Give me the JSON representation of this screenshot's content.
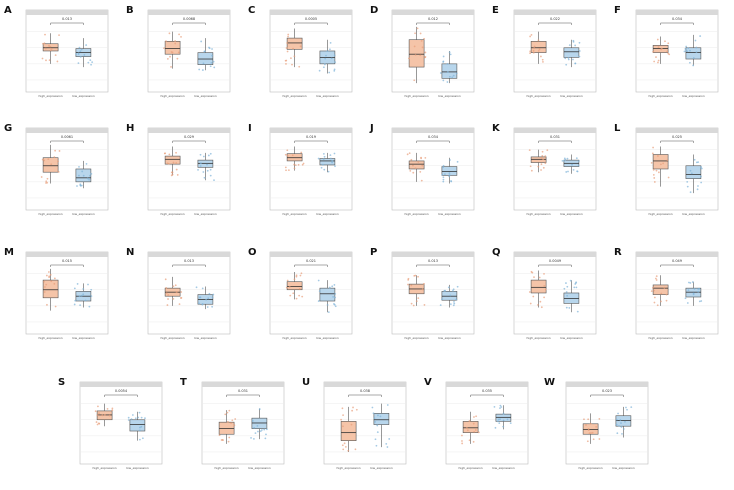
{
  "colors": {
    "high": "#f5c4a8",
    "low": "#b8d6ec",
    "strip": "#d9d9d9",
    "grid": "#ebebeb"
  },
  "chart_data": [
    {
      "type": "box",
      "panel": "A",
      "pvalue": "0.013",
      "series": [
        {
          "name": "high_expression",
          "q1": 2.8,
          "median": 3.0,
          "q3": 3.25,
          "lo": 2.0,
          "hi": 3.9
        },
        {
          "name": "low_expression",
          "q1": 2.45,
          "median": 2.7,
          "q3": 2.95,
          "lo": 1.8,
          "hi": 3.6
        }
      ]
    },
    {
      "type": "box",
      "panel": "B",
      "pvalue": "0.0068",
      "series": [
        {
          "name": "high_expression",
          "q1": 2.6,
          "median": 2.95,
          "q3": 3.4,
          "lo": 1.7,
          "hi": 4.0
        },
        {
          "name": "low_expression",
          "q1": 1.95,
          "median": 2.3,
          "q3": 2.7,
          "lo": 1.6,
          "hi": 3.6
        }
      ]
    },
    {
      "type": "box",
      "panel": "C",
      "pvalue": "0.0005",
      "series": [
        {
          "name": "high_expression",
          "q1": 2.9,
          "median": 3.3,
          "q3": 3.6,
          "lo": 1.8,
          "hi": 4.2
        },
        {
          "name": "low_expression",
          "q1": 2.0,
          "median": 2.4,
          "q3": 2.8,
          "lo": 1.4,
          "hi": 3.5
        }
      ]
    },
    {
      "type": "box",
      "panel": "D",
      "pvalue": "0.012",
      "series": [
        {
          "name": "high_expression",
          "q1": 1.8,
          "median": 2.6,
          "q3": 3.5,
          "lo": 0.8,
          "hi": 4.3
        },
        {
          "name": "low_expression",
          "q1": 1.1,
          "median": 1.5,
          "q3": 2.0,
          "lo": 0.8,
          "hi": 2.8
        }
      ]
    },
    {
      "type": "box",
      "panel": "E",
      "pvalue": "0.022",
      "series": [
        {
          "name": "high_expression",
          "q1": 2.7,
          "median": 3.0,
          "q3": 3.4,
          "lo": 2.0,
          "hi": 4.0
        },
        {
          "name": "low_expression",
          "q1": 2.4,
          "median": 2.75,
          "q3": 3.0,
          "lo": 1.8,
          "hi": 3.5
        }
      ]
    },
    {
      "type": "box",
      "panel": "F",
      "pvalue": "0.034",
      "series": [
        {
          "name": "high_expression",
          "q1": 2.7,
          "median": 2.95,
          "q3": 3.15,
          "lo": 2.0,
          "hi": 3.7
        },
        {
          "name": "low_expression",
          "q1": 2.3,
          "median": 2.7,
          "q3": 3.0,
          "lo": 1.9,
          "hi": 3.8
        }
      ]
    },
    {
      "type": "box",
      "panel": "G",
      "pvalue": "0.0061",
      "series": [
        {
          "name": "high_expression",
          "q1": 2.6,
          "median": 3.0,
          "q3": 3.5,
          "lo": 1.9,
          "hi": 4.3
        },
        {
          "name": "low_expression",
          "q1": 2.0,
          "median": 2.25,
          "q3": 2.8,
          "lo": 1.6,
          "hi": 3.3
        }
      ]
    },
    {
      "type": "box",
      "panel": "H",
      "pvalue": "0.029",
      "series": [
        {
          "name": "high_expression",
          "q1": 3.1,
          "median": 3.4,
          "q3": 3.6,
          "lo": 2.4,
          "hi": 4.2
        },
        {
          "name": "low_expression",
          "q1": 2.9,
          "median": 3.15,
          "q3": 3.35,
          "lo": 2.1,
          "hi": 3.8
        }
      ]
    },
    {
      "type": "box",
      "panel": "I",
      "pvalue": "0.019",
      "series": [
        {
          "name": "high_expression",
          "q1": 3.3,
          "median": 3.5,
          "q3": 3.75,
          "lo": 2.7,
          "hi": 4.2
        },
        {
          "name": "low_expression",
          "q1": 3.05,
          "median": 3.3,
          "q3": 3.45,
          "lo": 2.6,
          "hi": 3.8
        }
      ]
    },
    {
      "type": "box",
      "panel": "J",
      "pvalue": "0.034",
      "series": [
        {
          "name": "high_expression",
          "q1": 2.8,
          "median": 3.1,
          "q3": 3.3,
          "lo": 2.0,
          "hi": 3.8
        },
        {
          "name": "low_expression",
          "q1": 2.4,
          "median": 2.65,
          "q3": 2.95,
          "lo": 1.9,
          "hi": 3.5
        }
      ]
    },
    {
      "type": "box",
      "panel": "K",
      "pvalue": "0.031",
      "series": [
        {
          "name": "high_expression",
          "q1": 3.2,
          "median": 3.4,
          "q3": 3.55,
          "lo": 2.6,
          "hi": 4.0
        },
        {
          "name": "low_expression",
          "q1": 2.95,
          "median": 3.15,
          "q3": 3.35,
          "lo": 2.5,
          "hi": 3.7
        }
      ]
    },
    {
      "type": "box",
      "panel": "L",
      "pvalue": "0.025",
      "series": [
        {
          "name": "high_expression",
          "q1": 2.8,
          "median": 3.3,
          "q3": 3.7,
          "lo": 1.7,
          "hi": 4.2
        },
        {
          "name": "low_expression",
          "q1": 2.2,
          "median": 2.45,
          "q3": 3.0,
          "lo": 1.3,
          "hi": 3.7
        }
      ]
    },
    {
      "type": "box",
      "panel": "M",
      "pvalue": "0.015",
      "series": [
        {
          "name": "high_expression",
          "q1": 2.5,
          "median": 3.0,
          "q3": 3.6,
          "lo": 1.7,
          "hi": 4.3
        },
        {
          "name": "low_expression",
          "q1": 2.3,
          "median": 2.6,
          "q3": 2.9,
          "lo": 1.9,
          "hi": 3.4
        }
      ]
    },
    {
      "type": "box",
      "panel": "N",
      "pvalue": "0.013",
      "series": [
        {
          "name": "high_expression",
          "q1": 2.6,
          "median": 2.85,
          "q3": 3.1,
          "lo": 2.0,
          "hi": 3.8
        },
        {
          "name": "low_expression",
          "q1": 2.1,
          "median": 2.4,
          "q3": 2.7,
          "lo": 1.8,
          "hi": 3.2
        }
      ]
    },
    {
      "type": "box",
      "panel": "O",
      "pvalue": "0.021",
      "series": [
        {
          "name": "high_expression",
          "q1": 3.0,
          "median": 3.2,
          "q3": 3.5,
          "lo": 2.4,
          "hi": 4.1
        },
        {
          "name": "low_expression",
          "q1": 2.3,
          "median": 2.75,
          "q3": 3.1,
          "lo": 1.6,
          "hi": 3.6
        }
      ]
    },
    {
      "type": "box",
      "panel": "P",
      "pvalue": "0.013",
      "series": [
        {
          "name": "high_expression",
          "q1": 2.75,
          "median": 3.05,
          "q3": 3.35,
          "lo": 2.0,
          "hi": 3.9
        },
        {
          "name": "low_expression",
          "q1": 2.35,
          "median": 2.6,
          "q3": 2.9,
          "lo": 1.9,
          "hi": 3.3
        }
      ]
    },
    {
      "type": "box",
      "panel": "Q",
      "pvalue": "0.0049",
      "series": [
        {
          "name": "high_expression",
          "q1": 2.8,
          "median": 3.15,
          "q3": 3.6,
          "lo": 1.9,
          "hi": 4.2
        },
        {
          "name": "low_expression",
          "q1": 2.15,
          "median": 2.45,
          "q3": 2.8,
          "lo": 1.6,
          "hi": 3.6
        }
      ]
    },
    {
      "type": "box",
      "panel": "R",
      "pvalue": "0.049",
      "series": [
        {
          "name": "high_expression",
          "q1": 2.7,
          "median": 3.1,
          "q3": 3.3,
          "lo": 2.0,
          "hi": 3.9
        },
        {
          "name": "low_expression",
          "q1": 2.55,
          "median": 2.85,
          "q3": 3.1,
          "lo": 2.0,
          "hi": 3.5
        }
      ]
    },
    {
      "type": "box",
      "panel": "S",
      "pvalue": "0.0054",
      "series": [
        {
          "name": "high_expression",
          "q1": 3.0,
          "median": 3.3,
          "q3": 3.55,
          "lo": 2.6,
          "hi": 4.0
        },
        {
          "name": "low_expression",
          "q1": 2.3,
          "median": 2.7,
          "q3": 3.0,
          "lo": 1.7,
          "hi": 3.5
        }
      ]
    },
    {
      "type": "box",
      "panel": "T",
      "pvalue": "0.031",
      "series": [
        {
          "name": "high_expression",
          "q1": 2.1,
          "median": 2.45,
          "q3": 2.85,
          "lo": 1.5,
          "hi": 3.6
        },
        {
          "name": "low_expression",
          "q1": 2.45,
          "median": 2.8,
          "q3": 3.1,
          "lo": 1.8,
          "hi": 3.7
        }
      ]
    },
    {
      "type": "box",
      "panel": "U",
      "pvalue": "0.038",
      "series": [
        {
          "name": "high_expression",
          "q1": 1.7,
          "median": 2.2,
          "q3": 2.9,
          "lo": 1.0,
          "hi": 3.8
        },
        {
          "name": "low_expression",
          "q1": 2.7,
          "median": 3.0,
          "q3": 3.4,
          "lo": 1.3,
          "hi": 4.0
        }
      ]
    },
    {
      "type": "box",
      "panel": "V",
      "pvalue": "0.035",
      "series": [
        {
          "name": "high_expression",
          "q1": 2.2,
          "median": 2.5,
          "q3": 2.9,
          "lo": 1.5,
          "hi": 3.5
        },
        {
          "name": "low_expression",
          "q1": 2.9,
          "median": 3.15,
          "q3": 3.35,
          "lo": 2.4,
          "hi": 3.9
        }
      ]
    },
    {
      "type": "box",
      "panel": "W",
      "pvalue": "0.023",
      "series": [
        {
          "name": "high_expression",
          "q1": 2.1,
          "median": 2.4,
          "q3": 2.75,
          "lo": 1.5,
          "hi": 3.4
        },
        {
          "name": "low_expression",
          "q1": 2.6,
          "median": 2.95,
          "q3": 3.25,
          "lo": 1.9,
          "hi": 3.8
        }
      ]
    }
  ]
}
